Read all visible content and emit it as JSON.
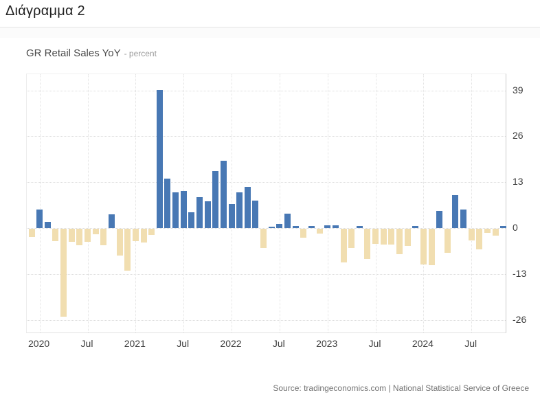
{
  "page": {
    "heading": "Διάγραμμα 2",
    "source_line": "Source: tradingeconomics.com | National Statistical Service of Greece"
  },
  "chart": {
    "title": "GR Retail Sales YoY",
    "subtitle": "- percent"
  },
  "chart_data": {
    "type": "bar",
    "title": "GR Retail Sales YoY",
    "unit_label": "percent",
    "grid": true,
    "legend": false,
    "y_axis_side": "right",
    "ylim": [
      -29.6,
      43.6
    ],
    "y_ticks": [
      39,
      26,
      13,
      0,
      -13,
      -26
    ],
    "x_tick_labels": [
      "2020",
      "Jul",
      "2021",
      "Jul",
      "2022",
      "Jul",
      "2023",
      "Jul",
      "2024",
      "Jul"
    ],
    "x_tick_month_indexes": [
      1,
      7,
      13,
      19,
      25,
      31,
      37,
      43,
      49,
      55
    ],
    "positive_color": "#4878b4",
    "negative_color": "#f1deb0",
    "x": [
      "2019-12",
      "2020-01",
      "2020-02",
      "2020-03",
      "2020-04",
      "2020-05",
      "2020-06",
      "2020-07",
      "2020-08",
      "2020-09",
      "2020-10",
      "2020-11",
      "2020-12",
      "2021-01",
      "2021-02",
      "2021-03",
      "2021-04",
      "2021-05",
      "2021-06",
      "2021-07",
      "2021-08",
      "2021-09",
      "2021-10",
      "2021-11",
      "2021-12",
      "2022-01",
      "2022-02",
      "2022-03",
      "2022-04",
      "2022-05",
      "2022-06",
      "2022-07",
      "2022-08",
      "2022-09",
      "2022-10",
      "2022-11",
      "2022-12",
      "2023-01",
      "2023-02",
      "2023-03",
      "2023-04",
      "2023-05",
      "2023-06",
      "2023-07",
      "2023-08",
      "2023-09",
      "2023-10",
      "2023-11",
      "2023-12",
      "2024-01",
      "2024-02",
      "2024-03",
      "2024-04",
      "2024-05",
      "2024-06",
      "2024-07",
      "2024-08",
      "2024-09",
      "2024-10",
      "2024-11"
    ],
    "values": [
      -2.6,
      5.2,
      1.8,
      -3.6,
      -25.1,
      -3.9,
      -4.9,
      -3.9,
      -1.8,
      -4.9,
      3.9,
      -7.8,
      -12.1,
      -3.6,
      -4.0,
      -1.9,
      39.2,
      14.1,
      10.2,
      10.6,
      4.4,
      8.8,
      7.5,
      16.2,
      19.0,
      6.9,
      10.1,
      11.6,
      7.7,
      -5.7,
      0.4,
      1.2,
      4.1,
      0.5,
      -2.7,
      0.5,
      -1.6,
      0.8,
      0.8,
      -9.7,
      -5.7,
      0.5,
      -8.7,
      -4.4,
      -4.6,
      -4.6,
      -7.3,
      -5.1,
      0.5,
      -10.4,
      -10.6,
      4.8,
      -7.0,
      9.3,
      5.2,
      -3.4,
      -6.0,
      -1.4,
      -2.1,
      0.5
    ]
  }
}
